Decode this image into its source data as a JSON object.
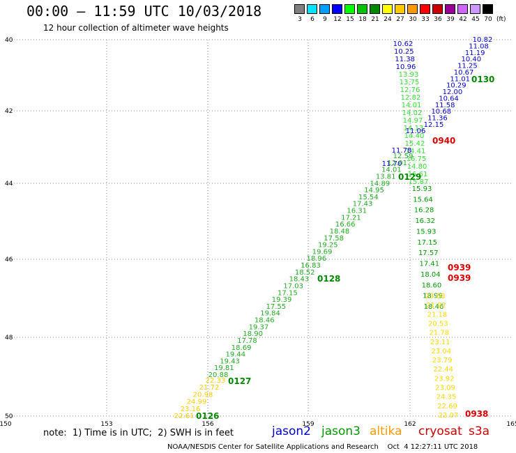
{
  "header": {
    "title": "00:00 – 11:59 UTC 10/03/2018",
    "subtitle": "12 hour collection of altimeter wave heights"
  },
  "legend": {
    "unit": "(ft)",
    "bins": [
      {
        "label": "3",
        "color": "#7f7f7f"
      },
      {
        "label": "6",
        "color": "#00e5ff"
      },
      {
        "label": "9",
        "color": "#009eff"
      },
      {
        "label": "12",
        "color": "#0000ff"
      },
      {
        "label": "15",
        "color": "#00ff00"
      },
      {
        "label": "18",
        "color": "#00c400"
      },
      {
        "label": "21",
        "color": "#008800"
      },
      {
        "label": "24",
        "color": "#ffff00"
      },
      {
        "label": "27",
        "color": "#ffc800"
      },
      {
        "label": "30",
        "color": "#ff9900"
      },
      {
        "label": "33",
        "color": "#ff0000"
      },
      {
        "label": "36",
        "color": "#cc0000"
      },
      {
        "label": "39",
        "color": "#990099"
      },
      {
        "label": "42",
        "color": "#cc66ff"
      },
      {
        "label": "45",
        "color": "#cc99ff"
      },
      {
        "label": "70",
        "color": "#000000"
      }
    ]
  },
  "axes": {
    "lon_ticks": [
      "150",
      "153",
      "156",
      "159",
      "162",
      "165"
    ],
    "lat_ticks": [
      "40",
      "42",
      "44",
      "46",
      "48",
      "50"
    ]
  },
  "footer": {
    "note": "note:  1) Time is in UTC;  2) SWH is in feet",
    "satellites": [
      {
        "name": "jason2",
        "color": "#0000cc"
      },
      {
        "name": "jason3",
        "color": "#009900"
      },
      {
        "name": "altika",
        "color": "#ff9900"
      },
      {
        "name": "cryosat",
        "color": "#cc0000"
      },
      {
        "name": "s3a",
        "color": "#cc0000"
      }
    ],
    "credit": "NOAA/NESDIS Center for Satellite Applications and Research    Oct  4 12:27:11 UTC 2018"
  },
  "tracks": {
    "jason2_ne": {
      "values": [
        "10.82",
        "11.08",
        "11.19",
        "10.40",
        "11.25",
        "10.67",
        "11.01",
        "10.29",
        "12.00",
        "10.64",
        "11.58",
        "10.68",
        "11.36",
        "12.15"
      ],
      "time": "0130",
      "color": "#0000cc",
      "time_color": "#008800"
    },
    "jason2_n": {
      "values": [
        "10.62",
        "10.25",
        "11.38",
        "10.96"
      ],
      "color": "#0000cc"
    },
    "green_n": {
      "values": [
        "13.93",
        "13.75",
        "12.76",
        "12.82",
        "14.01",
        "14.02",
        "14.97",
        "14.13",
        "14.40",
        "15.42",
        "14.41",
        "16.75",
        "14.80",
        "16.61",
        "15.87"
      ],
      "color": "#33dd33"
    },
    "blue_mid": {
      "values": [
        "11.06",
        "11.78",
        "11.70"
      ],
      "color": "#0000cc"
    },
    "green_diag": {
      "values": [
        "12.59",
        "12.01",
        "14.01",
        "13.81",
        "14.89",
        "14.95",
        "15.54",
        "17.43",
        "16.31",
        "17.21",
        "16.66",
        "18.48",
        "17.58",
        "19.25",
        "19.69",
        "18.96",
        "16.83",
        "18.52",
        "18.43",
        "17.03",
        "17.15",
        "19.39",
        "17.55",
        "19.84",
        "18.46",
        "19.37",
        "18.90",
        "17.78",
        "18.69",
        "19.44",
        "19.43",
        "19.81",
        "20.88"
      ],
      "time": "0129",
      "color": "#22aa22",
      "time_color": "#008800"
    },
    "green_south": {
      "values": [
        "15.93",
        "15.64",
        "16.28",
        "16.32",
        "15.93",
        "17.15",
        "17.57",
        "17.41",
        "18.04",
        "18.60",
        "18.99",
        "18.46"
      ],
      "color": "#009900"
    },
    "yellow_south": {
      "values": [
        "23.08",
        "21.92",
        "21.18",
        "20.53",
        "21.78",
        "23.11",
        "23.04",
        "23.79",
        "22.44",
        "23.92",
        "23.09",
        "24.35",
        "22.69",
        "22.07"
      ],
      "color": "#ffd700"
    },
    "yellow_sw": {
      "values": [
        "22.33",
        "21.72",
        "20.98",
        "24.99",
        "23.16",
        "22.61"
      ],
      "color": "#ffcc00"
    },
    "labels": {
      "t0128": "0128",
      "t0127": "0127",
      "t0126": "0126",
      "t0940": "0940",
      "t0939a": "0939",
      "t0939b": "0939",
      "t0938": "0938"
    }
  }
}
